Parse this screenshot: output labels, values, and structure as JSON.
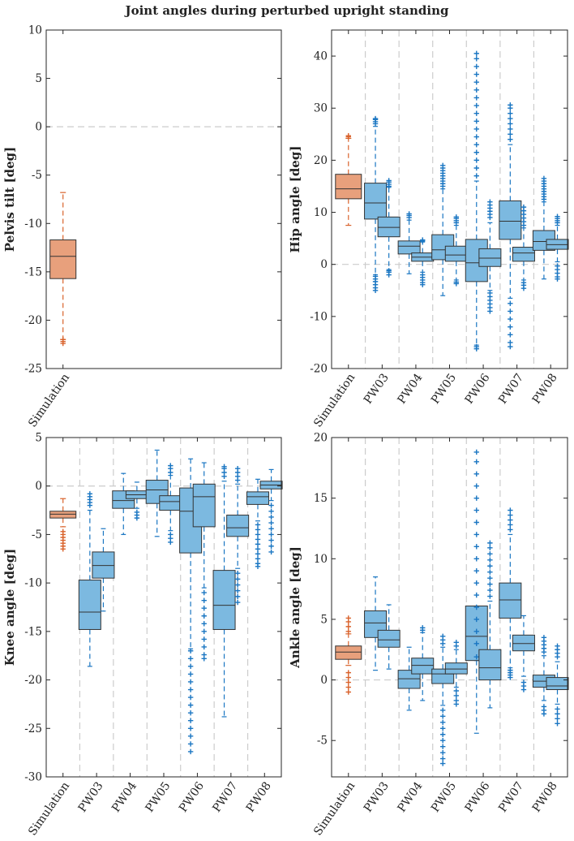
{
  "figure_title": "Joint angles during perturbed upright standing",
  "colors": {
    "simulation": "#e8a07c",
    "simulation_edge": "#d9622b",
    "experiment": "#7cb9e0",
    "experiment_edge": "#1a76c2",
    "box_edge": "#333333",
    "divider": "#cccccc"
  },
  "chart_data": [
    {
      "type": "box",
      "ylabel": "Pelvis tilt [deg]",
      "ylim": [
        -25,
        10
      ],
      "yticks": [
        -25,
        -20,
        -15,
        -10,
        -5,
        0,
        5,
        10
      ],
      "categories": [
        "Simulation"
      ],
      "groups": [
        {
          "label": "Simulation",
          "kind": "sim",
          "boxes": [
            {
              "q1": -15.7,
              "med": -13.4,
              "q3": -11.7,
              "wlo": -22.0,
              "whi": -6.8,
              "outliers": [
                -22.0,
                -22.2,
                -22.4
              ]
            }
          ]
        }
      ]
    },
    {
      "type": "box",
      "ylabel": "Hip angle [deg]",
      "ylim": [
        -20,
        45
      ],
      "yticks": [
        -20,
        -10,
        0,
        10,
        20,
        30,
        40
      ],
      "categories": [
        "Simulation",
        "PW03",
        "PW04",
        "PW05",
        "PW06",
        "PW07",
        "PW08"
      ],
      "groups": [
        {
          "label": "Simulation",
          "kind": "sim",
          "boxes": [
            {
              "q1": 12.6,
              "med": 14.5,
              "q3": 17.3,
              "wlo": 7.5,
              "whi": 24.2,
              "outliers": [
                24.5,
                24.7
              ]
            }
          ]
        },
        {
          "label": "PW03",
          "kind": "exp",
          "boxes": [
            {
              "q1": 8.7,
              "med": 11.8,
              "q3": 15.6,
              "wlo": -2.0,
              "whi": 26.5,
              "outliers": [
                27.0,
                27.4,
                27.8,
                28.0,
                -2.3,
                -2.8,
                -3.3,
                -3.9,
                -4.5,
                -5.0
              ]
            },
            {
              "q1": 5.3,
              "med": 7.1,
              "q3": 9.1,
              "wlo": -1.0,
              "whi": 14.8,
              "outliers": [
                15.0,
                15.4,
                15.8,
                16.1,
                -1.2,
                -1.5,
                -2.0
              ]
            }
          ]
        },
        {
          "label": "PW04",
          "kind": "exp",
          "boxes": [
            {
              "q1": 2.0,
              "med": 3.5,
              "q3": 4.5,
              "wlo": -1.8,
              "whi": 8.5,
              "outliers": [
                9.0,
                9.4,
                9.7
              ]
            },
            {
              "q1": 0.6,
              "med": 1.4,
              "q3": 2.2,
              "wlo": -1.5,
              "whi": 4.3,
              "outliers": [
                4.5,
                4.7,
                -2.0,
                -2.5,
                -3.0,
                -3.5,
                -3.9
              ]
            }
          ]
        },
        {
          "label": "PW05",
          "kind": "exp",
          "boxes": [
            {
              "q1": 0.9,
              "med": 2.8,
              "q3": 5.7,
              "wlo": -6.0,
              "whi": 14.5,
              "outliers": [
                15.0,
                15.5,
                16.0,
                16.5,
                17.0,
                17.5,
                18.0,
                18.5,
                19.0
              ]
            },
            {
              "q1": 0.6,
              "med": 1.8,
              "q3": 3.5,
              "wlo": -3.0,
              "whi": 7.5,
              "outliers": [
                8.0,
                8.4,
                8.8,
                9.1,
                -3.4,
                -3.7
              ]
            }
          ]
        },
        {
          "label": "PW06",
          "kind": "exp",
          "boxes": [
            {
              "q1": -3.3,
              "med": 0.3,
              "q3": 4.8,
              "wlo": -15.5,
              "whi": 16.0,
              "outliers": [
                17,
                18.5,
                20,
                21.5,
                23,
                24.5,
                26,
                27.5,
                29,
                30.5,
                32,
                33.5,
                35,
                36.5,
                38,
                39.5,
                40.5,
                -15.8,
                -16.2
              ]
            },
            {
              "q1": -0.4,
              "med": 1.2,
              "q3": 3.0,
              "wlo": -5.0,
              "whi": 8.0,
              "outliers": [
                9.0,
                9.6,
                10.2,
                10.8,
                11.4,
                12.0,
                -5.5,
                -6.2,
                -6.9,
                -7.6,
                -8.3,
                -9.0
              ]
            }
          ]
        },
        {
          "label": "PW07",
          "kind": "exp",
          "boxes": [
            {
              "q1": 4.8,
              "med": 8.3,
              "q3": 12.2,
              "wlo": -6.5,
              "whi": 23.0,
              "outliers": [
                24,
                25,
                26,
                27,
                28,
                29,
                30,
                30.6,
                -7.5,
                -9,
                -10.5,
                -12,
                -13.5,
                -15,
                -15.8
              ]
            },
            {
              "q1": 0.6,
              "med": 2.2,
              "q3": 3.3,
              "wlo": -3.0,
              "whi": 7.0,
              "outliers": [
                7.5,
                8.2,
                8.9,
                9.6,
                10.3,
                11.0,
                -3.5,
                -4.0,
                -4.6
              ]
            }
          ]
        },
        {
          "label": "PW08",
          "kind": "exp",
          "boxes": [
            {
              "q1": 2.7,
              "med": 4.4,
              "q3": 6.5,
              "wlo": -2.8,
              "whi": 12.0,
              "outliers": [
                12.5,
                13.0,
                13.5,
                14.0,
                14.5,
                15.0,
                15.5,
                16.0,
                16.5
              ]
            },
            {
              "q1": 2.9,
              "med": 3.8,
              "q3": 4.8,
              "wlo": 0.5,
              "whi": 7.5,
              "outliers": [
                8.0,
                8.4,
                8.8,
                9.2,
                -0.3,
                -1.0,
                -1.7,
                -2.4,
                -2.8
              ]
            }
          ]
        }
      ]
    },
    {
      "type": "box",
      "ylabel": "Knee angle [deg]",
      "ylim": [
        -30,
        5
      ],
      "yticks": [
        -30,
        -25,
        -20,
        -15,
        -10,
        -5,
        0,
        5
      ],
      "categories": [
        "Simulation",
        "PW03",
        "PW04",
        "PW05",
        "PW06",
        "PW07",
        "PW08"
      ],
      "groups": [
        {
          "label": "Simulation",
          "kind": "sim",
          "boxes": [
            {
              "q1": -3.3,
              "med": -2.9,
              "q3": -2.6,
              "wlo": -4.2,
              "whi": -1.3,
              "outliers": [
                -4.7,
                -5.0,
                -5.3,
                -5.6,
                -5.9,
                -6.2,
                -6.5
              ]
            }
          ]
        },
        {
          "label": "PW03",
          "kind": "exp",
          "boxes": [
            {
              "q1": -14.8,
              "med": -13.0,
              "q3": -9.7,
              "wlo": -18.6,
              "whi": -2.5,
              "outliers": [
                -2.0,
                -1.7,
                -1.4,
                -1.1,
                -0.8
              ]
            },
            {
              "q1": -9.5,
              "med": -8.2,
              "q3": -6.8,
              "wlo": -12.9,
              "whi": -4.4,
              "outliers": []
            }
          ]
        },
        {
          "label": "PW04",
          "kind": "exp",
          "boxes": [
            {
              "q1": -2.3,
              "med": -1.5,
              "q3": -0.5,
              "wlo": -5.0,
              "whi": 1.3,
              "outliers": []
            },
            {
              "q1": -1.3,
              "med": -0.9,
              "q3": -0.5,
              "wlo": -2.3,
              "whi": 0.4,
              "outliers": [
                -2.7,
                -3.0,
                -3.3
              ]
            }
          ]
        },
        {
          "label": "PW05",
          "kind": "exp",
          "boxes": [
            {
              "q1": -1.8,
              "med": -0.4,
              "q3": 0.6,
              "wlo": -5.2,
              "whi": 3.7,
              "outliers": []
            },
            {
              "q1": -2.5,
              "med": -1.6,
              "q3": -1.0,
              "wlo": -4.6,
              "whi": 1.1,
              "outliers": [
                1.4,
                1.8,
                2.1,
                -5.0,
                -5.4,
                -5.8
              ]
            }
          ]
        },
        {
          "label": "PW06",
          "kind": "exp",
          "boxes": [
            {
              "q1": -6.9,
              "med": -2.6,
              "q3": -0.2,
              "wlo": -16.8,
              "whi": 2.8,
              "outliers": [
                -17,
                -17.8,
                -18.6,
                -19.4,
                -20.2,
                -21.0,
                -21.8,
                -22.6,
                -23.4,
                -24.2,
                -25.0,
                -25.8,
                -26.6,
                -27.4
              ]
            },
            {
              "q1": -4.2,
              "med": -1.1,
              "q3": 0.2,
              "wlo": -10.5,
              "whi": 2.4,
              "outliers": [
                -11.0,
                -11.8,
                -12.6,
                -13.4,
                -14.2,
                -15.0,
                -15.8,
                -16.6,
                -17.4,
                -17.8
              ]
            }
          ]
        },
        {
          "label": "PW07",
          "kind": "exp",
          "boxes": [
            {
              "q1": -14.8,
              "med": -12.3,
              "q3": -8.7,
              "wlo": -23.8,
              "whi": 0.5,
              "outliers": [
                1.0,
                1.4,
                1.8,
                2.0
              ]
            },
            {
              "q1": -5.2,
              "med": -4.3,
              "q3": -3.0,
              "wlo": -8.5,
              "whi": 0.2,
              "outliers": [
                0.6,
                1.0,
                1.4,
                1.8,
                -9.0,
                -9.6,
                -10.2,
                -10.8,
                -11.4,
                -12.0
              ]
            }
          ]
        },
        {
          "label": "PW08",
          "kind": "exp",
          "boxes": [
            {
              "q1": -1.9,
              "med": -1.1,
              "q3": -0.6,
              "wlo": -3.6,
              "whi": 0.7,
              "outliers": [
                -4.0,
                -4.5,
                -5.0,
                -5.5,
                -6.0,
                -6.5,
                -7.0,
                -7.5,
                -8.0,
                -8.3
              ]
            },
            {
              "q1": -0.3,
              "med": 0.1,
              "q3": 0.5,
              "wlo": -1.5,
              "whi": 1.7,
              "outliers": [
                -2.0,
                -2.6,
                -3.2,
                -3.8,
                -4.4,
                -5.0,
                -5.6,
                -6.2,
                -6.8
              ]
            }
          ]
        }
      ]
    },
    {
      "type": "box",
      "ylabel": "Ankle angle [deg]",
      "ylim": [
        -8,
        20
      ],
      "yticks": [
        -5,
        0,
        5,
        10,
        15,
        20
      ],
      "categories": [
        "Simulation",
        "PW03",
        "PW04",
        "PW05",
        "PW06",
        "PW07",
        "PW08"
      ],
      "groups": [
        {
          "label": "Simulation",
          "kind": "sim",
          "boxes": [
            {
              "q1": 1.7,
              "med": 2.3,
              "q3": 2.8,
              "wlo": 1.2,
              "whi": 3.8,
              "outliers": [
                4.0,
                4.4,
                4.8,
                5.1,
                0.6,
                0.2,
                -0.2,
                -0.6,
                -1.0
              ]
            }
          ]
        },
        {
          "label": "PW03",
          "kind": "exp",
          "boxes": [
            {
              "q1": 3.5,
              "med": 4.7,
              "q3": 5.7,
              "wlo": 0.8,
              "whi": 8.5,
              "outliers": []
            },
            {
              "q1": 2.7,
              "med": 3.3,
              "q3": 4.1,
              "wlo": 0.9,
              "whi": 6.2,
              "outliers": []
            }
          ]
        },
        {
          "label": "PW04",
          "kind": "exp",
          "boxes": [
            {
              "q1": -0.7,
              "med": 0.1,
              "q3": 0.8,
              "wlo": -2.5,
              "whi": 2.7,
              "outliers": []
            },
            {
              "q1": 0.5,
              "med": 1.2,
              "q3": 1.8,
              "wlo": -1.7,
              "whi": 3.9,
              "outliers": [
                4.1,
                4.3
              ]
            }
          ]
        },
        {
          "label": "PW05",
          "kind": "exp",
          "boxes": [
            {
              "q1": -0.3,
              "med": 0.5,
              "q3": 0.9,
              "wlo": -2.1,
              "whi": 2.7,
              "outliers": [
                3.0,
                3.3,
                3.6,
                -2.5,
                -3.0,
                -3.5,
                -4.0,
                -4.5,
                -5.0,
                -5.5,
                -6.0,
                -6.5,
                -6.9
              ]
            },
            {
              "q1": 0.5,
              "med": 0.9,
              "q3": 1.4,
              "wlo": -0.6,
              "whi": 2.5,
              "outliers": [
                2.8,
                3.1,
                -0.9,
                -1.3,
                -1.7,
                -2.0
              ]
            }
          ]
        },
        {
          "label": "PW06",
          "kind": "exp",
          "boxes": [
            {
              "q1": 1.6,
              "med": 3.6,
              "q3": 6.1,
              "wlo": -4.4,
              "whi": 1.6,
              "outliers": [
                1.9,
                3,
                4,
                5,
                6,
                7,
                8,
                9,
                10,
                11,
                12,
                13,
                14,
                15,
                16,
                17,
                18,
                18.8
              ]
            },
            {
              "q1": 0.0,
              "med": 1.0,
              "q3": 2.5,
              "wlo": -2.3,
              "whi": 6.5,
              "outliers": [
                6.9,
                7.4,
                7.9,
                8.4,
                8.9,
                9.4,
                9.9,
                10.4,
                10.9,
                11.3
              ]
            }
          ]
        },
        {
          "label": "PW07",
          "kind": "exp",
          "boxes": [
            {
              "q1": 5.1,
              "med": 6.6,
              "q3": 8.0,
              "wlo": 1.0,
              "whi": 12.0,
              "outliers": [
                12.4,
                12.8,
                13.2,
                13.6,
                14.0,
                0.8,
                0.6,
                0.4,
                0.2
              ]
            },
            {
              "q1": 2.4,
              "med": 3.0,
              "q3": 3.7,
              "wlo": 0.3,
              "whi": 5.3,
              "outliers": [
                -0.2,
                -0.5,
                -0.8
              ]
            }
          ]
        },
        {
          "label": "PW08",
          "kind": "exp",
          "boxes": [
            {
              "q1": -0.6,
              "med": -0.1,
              "q3": 0.4,
              "wlo": -1.7,
              "whi": 2.0,
              "outliers": [
                2.3,
                2.6,
                2.9,
                3.2,
                3.5,
                -2.2,
                -2.5,
                -2.8
              ]
            },
            {
              "q1": -0.8,
              "med": -0.5,
              "q3": 0.2,
              "wlo": -2.0,
              "whi": 1.5,
              "outliers": [
                1.9,
                2.2,
                2.5,
                2.8,
                -2.4,
                -2.8,
                -3.2,
                -3.6
              ]
            }
          ]
        }
      ]
    }
  ]
}
